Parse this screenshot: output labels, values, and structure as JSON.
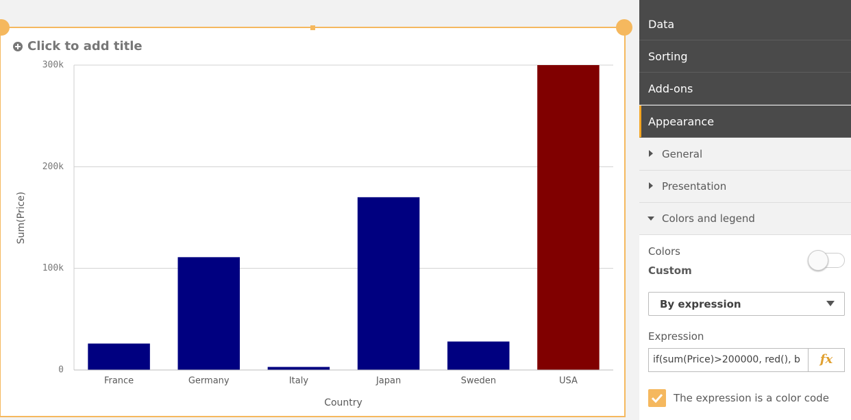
{
  "chart_data": {
    "type": "bar",
    "title": "Click to add title",
    "x_label": "Country",
    "y_label": "Sum(Price)",
    "categories": [
      "France",
      "Germany",
      "Italy",
      "Japan",
      "Sweden",
      "USA"
    ],
    "values": [
      26000,
      111000,
      3000,
      170000,
      28000,
      300000
    ],
    "colors": [
      "#000080",
      "#000080",
      "#000080",
      "#000080",
      "#000080",
      "#800000"
    ],
    "ylim": [
      0,
      300000
    ],
    "yticks": [
      {
        "value": 0,
        "label": "0"
      },
      {
        "value": 100000,
        "label": "100k"
      },
      {
        "value": 200000,
        "label": "200k"
      },
      {
        "value": 300000,
        "label": "300k"
      }
    ],
    "grid": true
  },
  "panel": {
    "tabs": [
      "Data",
      "Sorting",
      "Add-ons",
      "Appearance"
    ],
    "sections": [
      "General",
      "Presentation",
      "Colors and legend"
    ],
    "colors_label": "Colors",
    "colors_mode": "Custom",
    "dropdown": "By expression",
    "expression_label": "Expression",
    "expression_value": "if(sum(Price)>200000, red(), b",
    "fx": "fx",
    "checkbox_label": "The expression is a color code"
  }
}
